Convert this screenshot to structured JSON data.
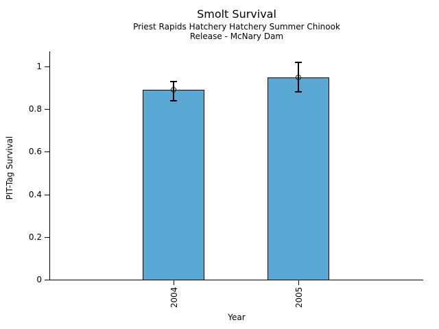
{
  "chart_data": {
    "type": "bar",
    "title": "Smolt Survival",
    "subtitle1": "Priest Rapids Hatchery Hatchery Summer Chinook",
    "subtitle2": "Release - McNary Dam",
    "xlabel": "Year",
    "ylabel": "PIT-Tag Survival",
    "categories": [
      "2004",
      "2005"
    ],
    "values": [
      0.89,
      0.95
    ],
    "error_low": [
      0.84,
      0.88
    ],
    "error_high": [
      0.93,
      1.02
    ],
    "yticks": [
      "0",
      "0.2",
      "0.4",
      "0.6",
      "0.8",
      "1"
    ],
    "ylim": [
      0,
      1.07
    ],
    "grid": false,
    "legend": "none",
    "bar_color": "#58A8D3",
    "bar_edge_color": "#000000",
    "axis_color": "#000000"
  }
}
